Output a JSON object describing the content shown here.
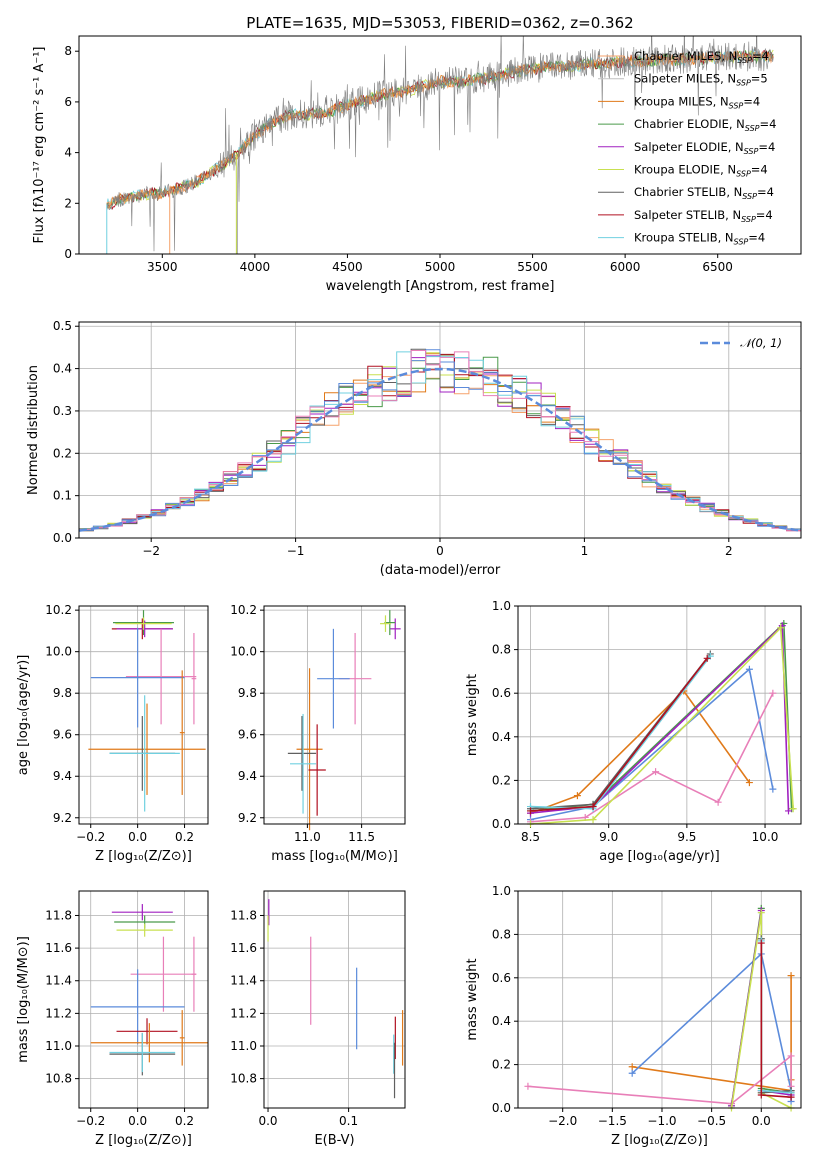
{
  "title": "PLATE=1635, MJD=53053, FIBERID=0362, z=0.362",
  "colors": {
    "Chabrier MILES": "#f5a26b",
    "Salpeter MILES": "#c0c0c0",
    "Kroupa MILES": "#e07a1a",
    "Chabrier ELODIE": "#4a9a4a",
    "Salpeter ELODIE": "#a020c0",
    "Kroupa ELODIE": "#c8e050",
    "Chabrier STELIB": "#606060",
    "Salpeter STELIB": "#b01020",
    "Kroupa STELIB": "#70d0e0",
    "blue": "#5b8bdb",
    "pink": "#e87fb8",
    "normal": "#5b8bdb"
  },
  "chart_data": [
    {
      "id": "spectrum",
      "type": "line",
      "xlabel": "wavelength [Angstrom, rest frame]",
      "ylabel": "Flux [fλ10⁻¹⁷ erg cm⁻² s⁻¹ A⁻¹]",
      "xlim": [
        3050,
        6950
      ],
      "ylim": [
        0,
        8.6
      ],
      "xticks": [
        "3500",
        "4000",
        "4500",
        "5000",
        "5500",
        "6000",
        "6500"
      ],
      "yticks": [
        "0",
        "2",
        "4",
        "6",
        "8"
      ],
      "legend": [
        {
          "name": "Chabrier MILES",
          "nssp": "4"
        },
        {
          "name": "Salpeter MILES",
          "nssp": "5"
        },
        {
          "name": "Kroupa MILES",
          "nssp": "4"
        },
        {
          "name": "Chabrier ELODIE",
          "nssp": "4"
        },
        {
          "name": "Salpeter ELODIE",
          "nssp": "4"
        },
        {
          "name": "Kroupa ELODIE",
          "nssp": "4"
        },
        {
          "name": "Chabrier STELIB",
          "nssp": "4"
        },
        {
          "name": "Salpeter STELIB",
          "nssp": "4"
        },
        {
          "name": "Kroupa STELIB",
          "nssp": "4"
        }
      ],
      "continuum": [
        [
          3200,
          1.95
        ],
        [
          3300,
          2.2
        ],
        [
          3400,
          2.35
        ],
        [
          3500,
          2.4
        ],
        [
          3600,
          2.6
        ],
        [
          3700,
          2.9
        ],
        [
          3800,
          3.4
        ],
        [
          3900,
          3.9
        ],
        [
          4000,
          4.7
        ],
        [
          4100,
          5.2
        ],
        [
          4200,
          5.5
        ],
        [
          4300,
          5.5
        ],
        [
          4400,
          5.6
        ],
        [
          4500,
          5.9
        ],
        [
          4600,
          6.1
        ],
        [
          4700,
          6.3
        ],
        [
          4800,
          6.4
        ],
        [
          4900,
          6.6
        ],
        [
          5000,
          6.8
        ],
        [
          5100,
          6.8
        ],
        [
          5200,
          6.9
        ],
        [
          5300,
          7.0
        ],
        [
          5400,
          7.2
        ],
        [
          5500,
          7.3
        ],
        [
          5600,
          7.4
        ],
        [
          5700,
          7.4
        ],
        [
          5800,
          7.5
        ],
        [
          5900,
          7.5
        ],
        [
          6000,
          7.6
        ],
        [
          6200,
          7.65
        ],
        [
          6400,
          7.7
        ],
        [
          6600,
          7.8
        ],
        [
          6800,
          7.8
        ]
      ],
      "gaps": [
        [
          3200,
          0
        ],
        [
          3540,
          0
        ],
        [
          3900,
          0
        ]
      ]
    },
    {
      "id": "residuals",
      "type": "histogram",
      "xlabel": "(data-model)/error",
      "ylabel": "Normed distribution",
      "xlim": [
        -2.5,
        2.5
      ],
      "ylim": [
        0,
        0.51
      ],
      "xticks": [
        "−2",
        "−1",
        "0",
        "1",
        "2"
      ],
      "yticks": [
        "0.0",
        "0.1",
        "0.2",
        "0.3",
        "0.4",
        "0.5"
      ],
      "bin_width": 0.1,
      "legend": "𝒩(0, 1)"
    },
    {
      "id": "age-vs-Z",
      "type": "errorbar",
      "xlabel": "Z [log₁₀(Z/Z⊙)]",
      "ylabel": "age  [log₁₀(age/yr)]",
      "xlim": [
        -0.25,
        0.3
      ],
      "ylim": [
        9.17,
        10.22
      ],
      "xticks": [
        "−0.2",
        "0.0",
        "0.2"
      ],
      "yticks": [
        "9.2",
        "9.4",
        "9.6",
        "9.8",
        "10.0",
        "10.2"
      ],
      "points": [
        {
          "c": "Chabrier ELODIE",
          "x": 0.025,
          "xe": 0.13,
          "y": 10.14,
          "ye": 0.06
        },
        {
          "c": "Salpeter STELIB",
          "x": 0.02,
          "xe": 0.13,
          "y": 10.11,
          "ye": 0.05
        },
        {
          "c": "Salpeter ELODIE",
          "x": 0.03,
          "xe": 0.12,
          "y": 10.11,
          "ye": 0.04
        },
        {
          "c": "Kroupa ELODIE",
          "x": 0.025,
          "xe": 0.12,
          "y": 10.135,
          "ye": 0.03
        },
        {
          "c": "pink",
          "x": 0.1,
          "xe": 0.15,
          "y": 9.88,
          "ye": 0.23
        },
        {
          "c": "blue",
          "x": 0.0,
          "xe": 0.2,
          "y": 9.875,
          "ye": 0.24
        },
        {
          "c": "Kroupa MILES",
          "x": 0.04,
          "xe": 0.25,
          "y": 9.53,
          "ye": 0.22
        },
        {
          "c": "Chabrier STELIB",
          "x": 0.02,
          "xe": 0.14,
          "y": 9.51,
          "ye": 0.18
        },
        {
          "c": "Kroupa STELIB",
          "x": 0.03,
          "xe": 0.15,
          "y": 9.51,
          "ye": 0.28
        },
        {
          "c": "Kroupa MILES",
          "x": 0.19,
          "xe": 0.01,
          "y": 9.61,
          "ye": 0.3
        },
        {
          "c": "pink",
          "x": 0.24,
          "xe": 0.01,
          "y": 9.87,
          "ye": 0.22
        }
      ]
    },
    {
      "id": "age-vs-mass",
      "type": "errorbar",
      "xlabel": "mass [log₁₀(M/M⊙)]",
      "ylabel": "",
      "xlim": [
        10.6,
        11.9
      ],
      "ylim": [
        9.17,
        10.22
      ],
      "xticks": [
        "11.0",
        "11.5"
      ],
      "yticks": [
        "9.2",
        "9.4",
        "9.6",
        "9.8",
        "10.0",
        "10.2"
      ],
      "points": [
        {
          "c": "Salpeter ELODIE",
          "x": 11.81,
          "xe": 0.05,
          "y": 10.11,
          "ye": 0.05
        },
        {
          "c": "Chabrier ELODIE",
          "x": 11.76,
          "xe": 0.05,
          "y": 10.14,
          "ye": 0.06
        },
        {
          "c": "Kroupa ELODIE",
          "x": 11.72,
          "xe": 0.05,
          "y": 10.135,
          "ye": 0.04
        },
        {
          "c": "pink",
          "x": 11.44,
          "xe": 0.15,
          "y": 9.87,
          "ye": 0.22
        },
        {
          "c": "blue",
          "x": 11.24,
          "xe": 0.15,
          "y": 9.87,
          "ye": 0.24
        },
        {
          "c": "Kroupa MILES",
          "x": 11.02,
          "xe": 0.12,
          "y": 9.53,
          "ye": 0.39
        },
        {
          "c": "Salpeter STELIB",
          "x": 11.09,
          "xe": 0.08,
          "y": 9.43,
          "ye": 0.22
        },
        {
          "c": "Chabrier STELIB",
          "x": 10.95,
          "xe": 0.13,
          "y": 9.51,
          "ye": 0.18
        },
        {
          "c": "Kroupa STELIB",
          "x": 10.96,
          "xe": 0.12,
          "y": 9.46,
          "ye": 0.24
        }
      ]
    },
    {
      "id": "weight-vs-age",
      "type": "line",
      "xlabel": "age  [log₁₀(age/yr)]",
      "ylabel": "mass weight",
      "xlim": [
        8.42,
        10.23
      ],
      "ylim": [
        0,
        1
      ],
      "xticks": [
        "8.5",
        "9.0",
        "9.5",
        "10.0"
      ],
      "yticks": [
        "0.0",
        "0.2",
        "0.4",
        "0.6",
        "0.8",
        "1.0"
      ],
      "series": [
        {
          "c": "Kroupa MILES",
          "x": [
            8.5,
            8.8,
            9.48,
            9.9
          ],
          "y": [
            0.05,
            0.13,
            0.61,
            0.19
          ]
        },
        {
          "c": "blue",
          "x": [
            8.5,
            8.9,
            9.9,
            10.05
          ],
          "y": [
            0.02,
            0.08,
            0.71,
            0.16
          ]
        },
        {
          "c": "pink",
          "x": [
            8.5,
            8.85,
            9.3,
            9.7,
            10.05
          ],
          "y": [
            0.01,
            0.03,
            0.24,
            0.1,
            0.6
          ]
        },
        {
          "c": "Chabrier ELODIE",
          "x": [
            8.5,
            8.9,
            10.12,
            10.17
          ],
          "y": [
            0.06,
            0.09,
            0.92,
            0.07
          ]
        },
        {
          "c": "Salpeter ELODIE",
          "x": [
            8.5,
            8.9,
            10.11,
            10.15
          ],
          "y": [
            0.05,
            0.08,
            0.91,
            0.06
          ]
        },
        {
          "c": "Kroupa ELODIE",
          "x": [
            8.5,
            8.9,
            10.1,
            10.18
          ],
          "y": [
            0.0,
            0.02,
            0.9,
            0.07
          ]
        },
        {
          "c": "Chabrier STELIB",
          "x": [
            8.5,
            8.9,
            9.65
          ],
          "y": [
            0.07,
            0.09,
            0.78
          ]
        },
        {
          "c": "Kroupa STELIB",
          "x": [
            8.5,
            8.9,
            9.65
          ],
          "y": [
            0.08,
            0.07,
            0.77
          ]
        },
        {
          "c": "Salpeter STELIB",
          "x": [
            8.5,
            8.9,
            9.63
          ],
          "y": [
            0.06,
            0.08,
            0.76
          ]
        }
      ]
    },
    {
      "id": "mass-vs-Z",
      "type": "errorbar",
      "xlabel": "Z [log₁₀(Z/Z⊙)]",
      "ylabel": "mass [log₁₀(M/M⊙)]",
      "xlim": [
        -0.25,
        0.3
      ],
      "ylim": [
        10.62,
        11.95
      ],
      "xticks": [
        "−0.2",
        "0.0",
        "0.2"
      ],
      "yticks": [
        "10.8",
        "11.0",
        "11.2",
        "11.4",
        "11.6",
        "11.8"
      ],
      "points": [
        {
          "c": "Salpeter ELODIE",
          "x": 0.02,
          "xe": 0.13,
          "y": 11.82,
          "ye": 0.05
        },
        {
          "c": "Chabrier ELODIE",
          "x": 0.03,
          "xe": 0.13,
          "y": 11.76,
          "ye": 0.04
        },
        {
          "c": "Kroupa ELODIE",
          "x": 0.03,
          "xe": 0.12,
          "y": 11.71,
          "ye": 0.04
        },
        {
          "c": "pink",
          "x": 0.11,
          "xe": 0.14,
          "y": 11.44,
          "ye": 0.23
        },
        {
          "c": "blue",
          "x": 0.0,
          "xe": 0.2,
          "y": 11.24,
          "ye": 0.23
        },
        {
          "c": "Salpeter STELIB",
          "x": 0.04,
          "xe": 0.13,
          "y": 11.09,
          "ye": 0.08
        },
        {
          "c": "Kroupa MILES",
          "x": 0.05,
          "xe": 0.25,
          "y": 11.02,
          "ye": 0.12
        },
        {
          "c": "Chabrier STELIB",
          "x": 0.02,
          "xe": 0.14,
          "y": 10.95,
          "ye": 0.13
        },
        {
          "c": "Kroupa STELIB",
          "x": 0.02,
          "xe": 0.14,
          "y": 10.96,
          "ye": 0.12
        },
        {
          "c": "Kroupa MILES",
          "x": 0.19,
          "xe": 0.01,
          "y": 11.05,
          "ye": 0.17
        },
        {
          "c": "pink",
          "x": 0.24,
          "xe": 0.01,
          "y": 11.44,
          "ye": 0.23
        }
      ]
    },
    {
      "id": "mass-vs-ebv",
      "type": "errorbar",
      "xlabel": "E(B-V)",
      "ylabel": "",
      "xlim": [
        -0.005,
        0.17
      ],
      "ylim": [
        10.62,
        11.95
      ],
      "xticks": [
        "0.0",
        "0.1"
      ],
      "yticks": [
        "10.8",
        "11.0",
        "11.2",
        "11.4",
        "11.6",
        "11.8"
      ],
      "points": [
        {
          "c": "Salpeter ELODIE",
          "x": 0.001,
          "xe": 0,
          "y": 11.82,
          "ye": 0.08
        },
        {
          "c": "Kroupa ELODIE",
          "x": 0.0,
          "xe": 0,
          "y": 11.72,
          "ye": 0.08
        },
        {
          "c": "pink",
          "x": 0.053,
          "xe": 0,
          "y": 11.4,
          "ye": 0.27
        },
        {
          "c": "blue",
          "x": 0.11,
          "xe": 0,
          "y": 11.23,
          "ye": 0.25
        },
        {
          "c": "Salpeter STELIB",
          "x": 0.158,
          "xe": 0,
          "y": 11.05,
          "ye": 0.13
        },
        {
          "c": "Kroupa STELIB",
          "x": 0.156,
          "xe": 0,
          "y": 10.95,
          "ye": 0.12
        },
        {
          "c": "Chabrier STELIB",
          "x": 0.157,
          "xe": 0,
          "y": 10.85,
          "ye": 0.17
        },
        {
          "c": "Kroupa MILES",
          "x": 0.167,
          "xe": 0,
          "y": 11.05,
          "ye": 0.17
        }
      ]
    },
    {
      "id": "weight-vs-Z",
      "type": "line",
      "xlabel": "Z [log₁₀(Z/Z⊙)]",
      "ylabel": "mass weight",
      "xlim": [
        -2.45,
        0.4
      ],
      "ylim": [
        0,
        1
      ],
      "xticks": [
        "−2.0",
        "−1.5",
        "−1.0",
        "−0.5",
        "0.0"
      ],
      "yticks": [
        "0.0",
        "0.2",
        "0.4",
        "0.6",
        "0.8",
        "1.0"
      ],
      "series": [
        {
          "c": "Kroupa MILES",
          "x": [
            -1.3,
            0.3,
            0.3,
            0.3
          ],
          "y": [
            0.19,
            0.08,
            0.61,
            0.13
          ]
        },
        {
          "c": "blue",
          "x": [
            -1.3,
            0.0,
            0.3,
            0.3
          ],
          "y": [
            0.16,
            0.71,
            0.08,
            0.03
          ]
        },
        {
          "c": "pink",
          "x": [
            -2.35,
            -0.3,
            0.3,
            0.3
          ],
          "y": [
            0.1,
            0.02,
            0.24,
            0.1
          ]
        },
        {
          "c": "Chabrier ELODIE",
          "x": [
            -0.3,
            0.0,
            0.0,
            0.3
          ],
          "y": [
            0.01,
            0.92,
            0.09,
            0.07
          ]
        },
        {
          "c": "Salpeter ELODIE",
          "x": [
            -0.3,
            0.0,
            0.0,
            0.3
          ],
          "y": [
            0.01,
            0.91,
            0.08,
            0.06
          ]
        },
        {
          "c": "Kroupa ELODIE",
          "x": [
            -0.3,
            0.0,
            0.0,
            0.3
          ],
          "y": [
            0.0,
            0.9,
            0.07,
            0.0
          ]
        },
        {
          "c": "Chabrier STELIB",
          "x": [
            0.0,
            0.0,
            0.3
          ],
          "y": [
            0.78,
            0.07,
            0.08
          ]
        },
        {
          "c": "Kroupa STELIB",
          "x": [
            0.0,
            0.0,
            0.3
          ],
          "y": [
            0.77,
            0.08,
            0.07
          ]
        },
        {
          "c": "Salpeter STELIB",
          "x": [
            0.0,
            0.0,
            0.3
          ],
          "y": [
            0.76,
            0.06,
            0.05
          ]
        }
      ]
    }
  ]
}
